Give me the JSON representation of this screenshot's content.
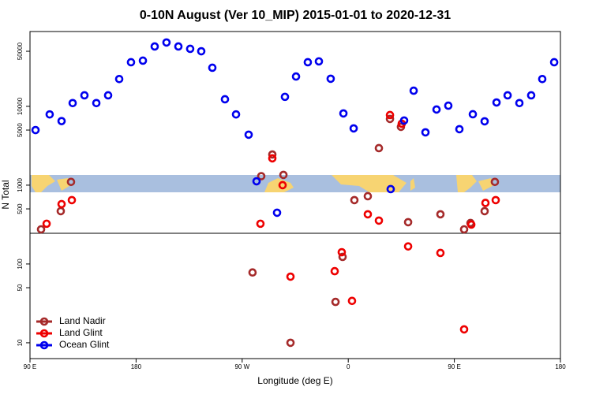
{
  "chart_data": {
    "type": "scatter",
    "title": "0-10N August (Ver 10_MIP)   2015-01-01 to 2020-12-31",
    "xlabel": "Longitude (deg E)",
    "ylabel": "N Total",
    "ylog": true,
    "xlim": [
      90,
      540
    ],
    "ylim": [
      6.3,
      89000
    ],
    "xticks": [
      {
        "value": 90,
        "label": "90 E"
      },
      {
        "value": 180,
        "label": "180"
      },
      {
        "value": 270,
        "label": "90 W"
      },
      {
        "value": 360,
        "label": "0"
      },
      {
        "value": 450,
        "label": "90 E"
      },
      {
        "value": 540,
        "label": "180"
      }
    ],
    "yticks": [
      10,
      50,
      100,
      500,
      1000,
      5000,
      10000,
      50000
    ],
    "legend": "bottom-left",
    "series": [
      {
        "name": "Land Nadir",
        "color": "#a52a2a",
        "x": [
          99.4,
          116.1,
          124.8,
          278.8,
          286.2,
          295.6,
          305.0,
          311.0,
          349.2,
          355.2,
          365.2,
          376.6,
          386.0,
          395.4,
          404.7,
          410.8,
          438.2,
          458.3,
          463.7,
          475.7,
          484.4
        ],
        "values": [
          275,
          468,
          1100,
          78,
          1300,
          2450,
          1350,
          10,
          33,
          123,
          646,
          724,
          2950,
          6920,
          5500,
          339,
          427,
          275,
          331,
          468,
          1100
        ]
      },
      {
        "name": "Land Glint",
        "color": "#ee0000",
        "x": [
          104.1,
          116.8,
          125.5,
          285.5,
          295.6,
          304.3,
          311.0,
          348.5,
          354.5,
          363.2,
          376.6,
          386.0,
          395.4,
          405.4,
          410.8,
          438.2,
          458.3,
          464.4,
          476.4,
          485.1
        ],
        "values": [
          324,
          575,
          646,
          324,
          2190,
          1000,
          69,
          81,
          141,
          34,
          427,
          355,
          7760,
          6030,
          167,
          138,
          14.8,
          316,
          595,
          646
        ]
      },
      {
        "name": "Ocean Glint",
        "color": "#0000ee",
        "x": [
          94.7,
          106.7,
          116.8,
          126.2,
          136.2,
          146.3,
          156.3,
          165.7,
          175.7,
          185.8,
          195.8,
          205.8,
          215.9,
          225.9,
          235.3,
          244.7,
          255.4,
          264.8,
          275.5,
          282.2,
          299.6,
          306.3,
          315.7,
          325.7,
          335.1,
          345.1,
          355.9,
          364.6,
          396.0,
          407.4,
          415.5,
          425.5,
          434.9,
          444.9,
          454.3,
          465.7,
          475.7,
          485.8,
          495.2,
          505.2,
          515.2,
          524.6,
          534.7
        ],
        "values": [
          5000,
          7900,
          6500,
          11000,
          13800,
          11000,
          13800,
          22200,
          36300,
          38000,
          57500,
          64600,
          57500,
          53700,
          50000,
          30900,
          12300,
          7900,
          4370,
          1120,
          447,
          13200,
          23900,
          36300,
          37200,
          22400,
          8130,
          5250,
          891,
          6610,
          15800,
          4680,
          9120,
          10200,
          5130,
          7940,
          6460,
          11200,
          13800,
          11000,
          13800,
          22200,
          36300
        ]
      }
    ]
  }
}
